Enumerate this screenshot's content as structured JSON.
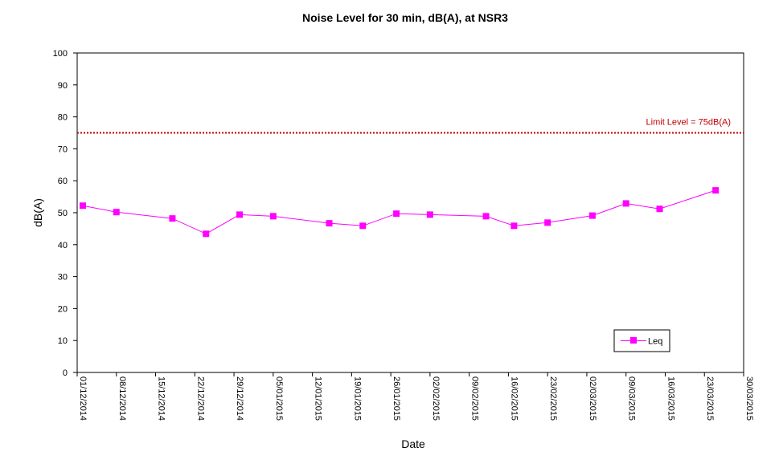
{
  "chart_data": {
    "type": "line",
    "title": "Noise Level for 30 min, dB(A), at NSR3",
    "xlabel": "Date",
    "ylabel": "dB(A)",
    "ylim": [
      0,
      100
    ],
    "yticks": [
      "0",
      "10",
      "20",
      "30",
      "40",
      "50",
      "60",
      "70",
      "80",
      "90",
      "100"
    ],
    "xlim": [
      "2014-12-01",
      "2015-03-30"
    ],
    "xticks": [
      "01/12/2014",
      "08/12/2014",
      "15/12/2014",
      "22/12/2014",
      "29/12/2014",
      "05/01/2015",
      "12/01/2015",
      "19/01/2015",
      "26/01/2015",
      "02/02/2015",
      "09/02/2015",
      "16/02/2015",
      "23/02/2015",
      "02/03/2015",
      "09/03/2015",
      "16/03/2015",
      "23/03/2015",
      "30/03/2015"
    ],
    "grid": false,
    "legend_position": "bottom-right",
    "series": [
      {
        "name": "Leq",
        "color": "#ff00ff",
        "marker": "square",
        "points": [
          {
            "x": "2014-12-02",
            "y": 52.2
          },
          {
            "x": "2014-12-08",
            "y": 50.2
          },
          {
            "x": "2014-12-18",
            "y": 48.2
          },
          {
            "x": "2014-12-24",
            "y": 43.4
          },
          {
            "x": "2014-12-30",
            "y": 49.4
          },
          {
            "x": "2015-01-05",
            "y": 48.9
          },
          {
            "x": "2015-01-15",
            "y": 46.7
          },
          {
            "x": "2015-01-21",
            "y": 45.9
          },
          {
            "x": "2015-01-27",
            "y": 49.7
          },
          {
            "x": "2015-02-02",
            "y": 49.4
          },
          {
            "x": "2015-02-12",
            "y": 48.9
          },
          {
            "x": "2015-02-17",
            "y": 45.9
          },
          {
            "x": "2015-02-23",
            "y": 46.9
          },
          {
            "x": "2015-03-03",
            "y": 49.1
          },
          {
            "x": "2015-03-09",
            "y": 52.9
          },
          {
            "x": "2015-03-15",
            "y": 51.2
          },
          {
            "x": "2015-03-25",
            "y": 57.0
          }
        ]
      }
    ],
    "reference_line": {
      "y": 75,
      "label": "Limit Level  = 75dB(A)",
      "color": "#c00000",
      "style": "dotted"
    }
  }
}
